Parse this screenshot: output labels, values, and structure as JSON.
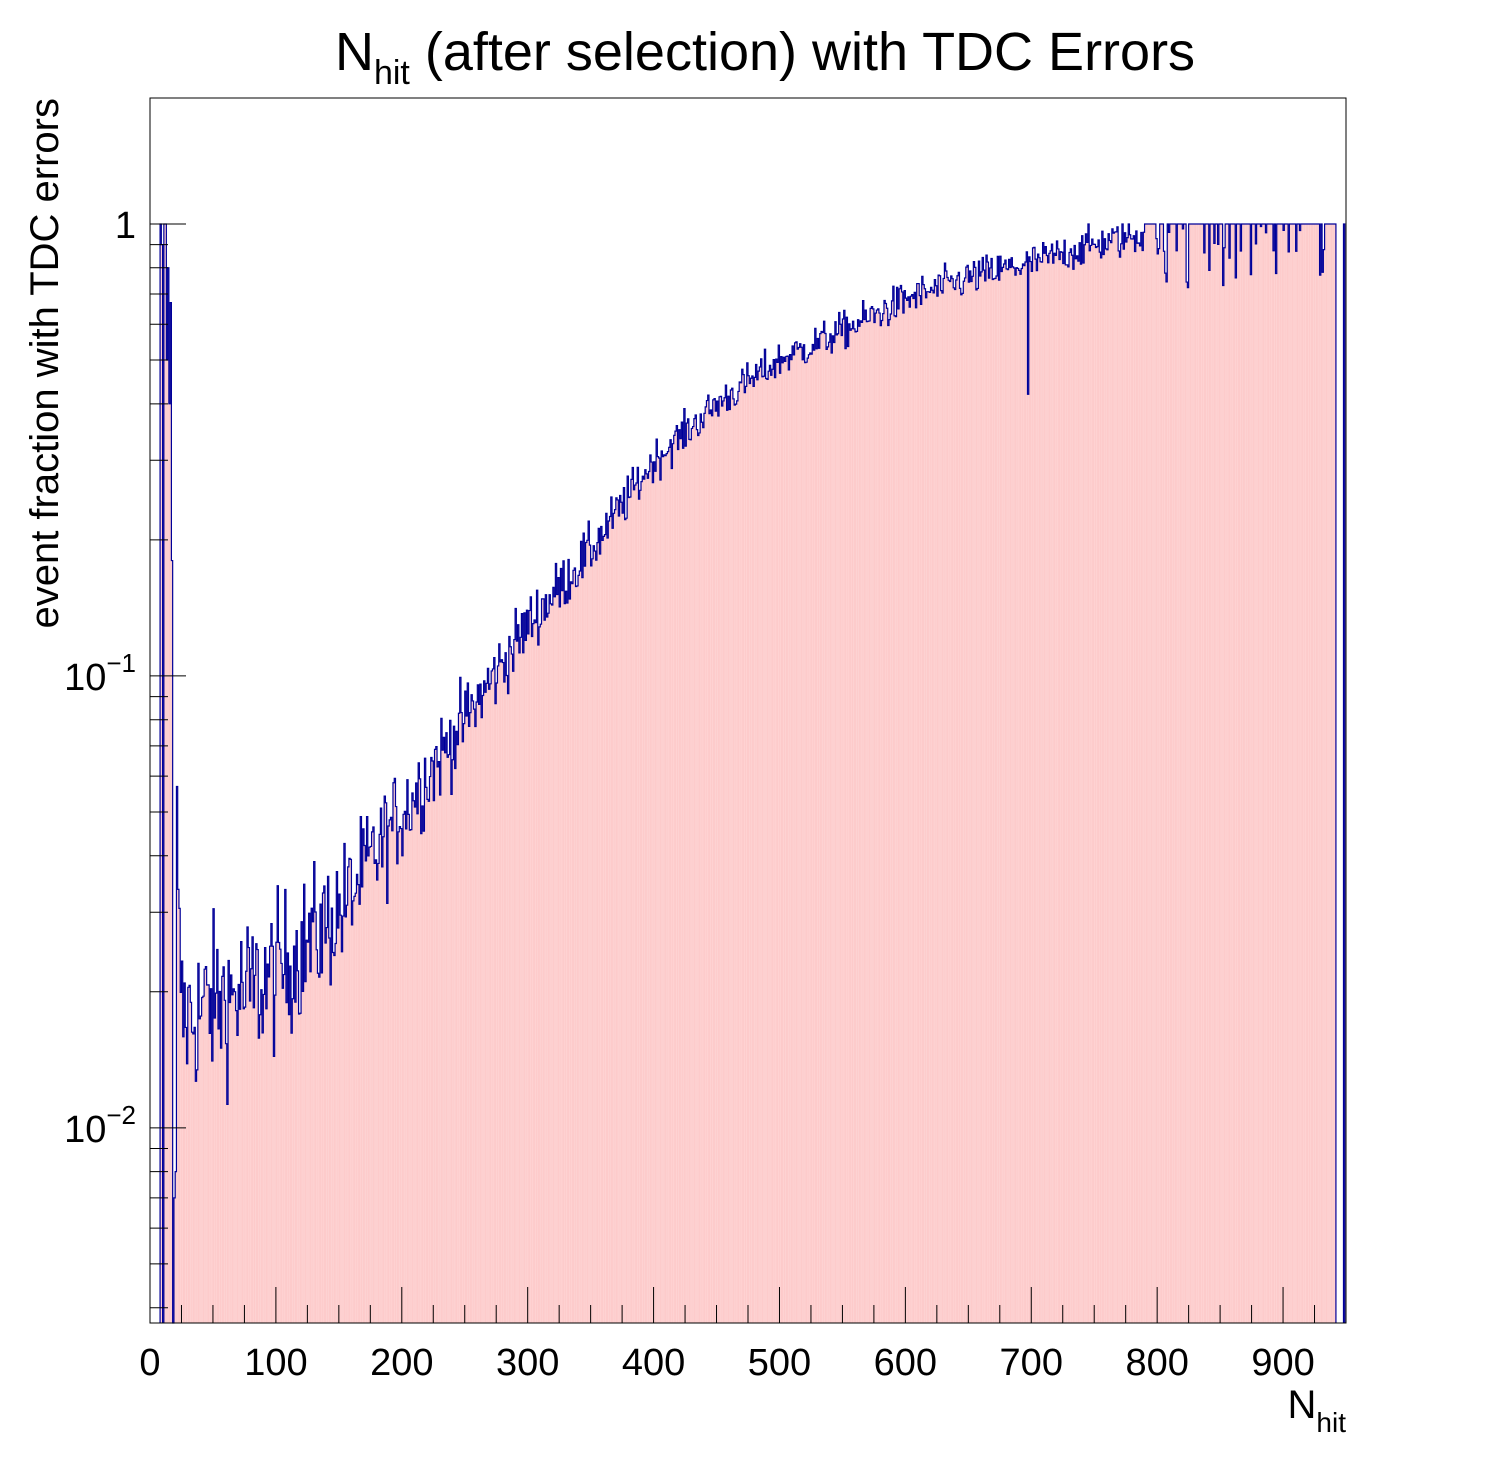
{
  "chart_data": {
    "type": "histogram",
    "title": {
      "main": "N",
      "sub": "hit",
      "rest": " (after selection) with TDC Errors"
    },
    "xlabel": {
      "main": "N",
      "sub": "hit"
    },
    "ylabel": "event fraction with TDC errors",
    "x_range": [
      0,
      950
    ],
    "y_range": [
      0.0037,
      1.9
    ],
    "y_scale": "log",
    "bin_width": 1,
    "fill_color": "#fdcbcb",
    "line_color": "#000099",
    "x_ticks": [
      {
        "value": 0,
        "label": "0"
      },
      {
        "value": 100,
        "label": "100"
      },
      {
        "value": 200,
        "label": "200"
      },
      {
        "value": 300,
        "label": "300"
      },
      {
        "value": 400,
        "label": "400"
      },
      {
        "value": 500,
        "label": "500"
      },
      {
        "value": 600,
        "label": "600"
      },
      {
        "value": 700,
        "label": "700"
      },
      {
        "value": 800,
        "label": "800"
      },
      {
        "value": 900,
        "label": "900"
      }
    ],
    "y_ticks": [
      {
        "value": 1,
        "base": "1",
        "exp": ""
      },
      {
        "value": 0.1,
        "base": "10",
        "exp": "−1"
      },
      {
        "value": 0.01,
        "base": "10",
        "exp": "−2"
      }
    ],
    "curve_points": [
      {
        "x": 21,
        "y": 0.05
      },
      {
        "x": 22,
        "y": 0.03
      },
      {
        "x": 25,
        "y": 0.018
      },
      {
        "x": 30,
        "y": 0.0175
      },
      {
        "x": 50,
        "y": 0.019
      },
      {
        "x": 80,
        "y": 0.02
      },
      {
        "x": 100,
        "y": 0.022
      },
      {
        "x": 150,
        "y": 0.03
      },
      {
        "x": 200,
        "y": 0.05
      },
      {
        "x": 250,
        "y": 0.08
      },
      {
        "x": 300,
        "y": 0.13
      },
      {
        "x": 350,
        "y": 0.19
      },
      {
        "x": 400,
        "y": 0.3
      },
      {
        "x": 450,
        "y": 0.4
      },
      {
        "x": 500,
        "y": 0.5
      },
      {
        "x": 550,
        "y": 0.58
      },
      {
        "x": 600,
        "y": 0.68
      },
      {
        "x": 650,
        "y": 0.76
      },
      {
        "x": 700,
        "y": 0.82
      },
      {
        "x": 750,
        "y": 0.9
      },
      {
        "x": 790,
        "y": 0.95
      },
      {
        "x": 800,
        "y": 0.98
      },
      {
        "x": 900,
        "y": 0.99
      },
      {
        "x": 941,
        "y": 0.99
      }
    ],
    "special_bins": [
      {
        "x": 8,
        "y": 1.0
      },
      {
        "x": 9,
        "y": 0.9
      },
      {
        "x": 11,
        "y": 1.0
      },
      {
        "x": 12,
        "y": 1.0
      },
      {
        "x": 13,
        "y": 0.5
      },
      {
        "x": 14,
        "y": 0.8
      },
      {
        "x": 15,
        "y": 0.4
      },
      {
        "x": 16,
        "y": 0.67
      },
      {
        "x": 17,
        "y": 0.18
      },
      {
        "x": 18,
        "y": 0.0037
      },
      {
        "x": 19,
        "y": 0.007
      },
      {
        "x": 20,
        "y": 0.008
      },
      {
        "x": 697,
        "y": 0.42
      },
      {
        "x": 948,
        "y": 1.0
      }
    ],
    "noise_sigma": 0.14,
    "noise_seed": 12345
  }
}
